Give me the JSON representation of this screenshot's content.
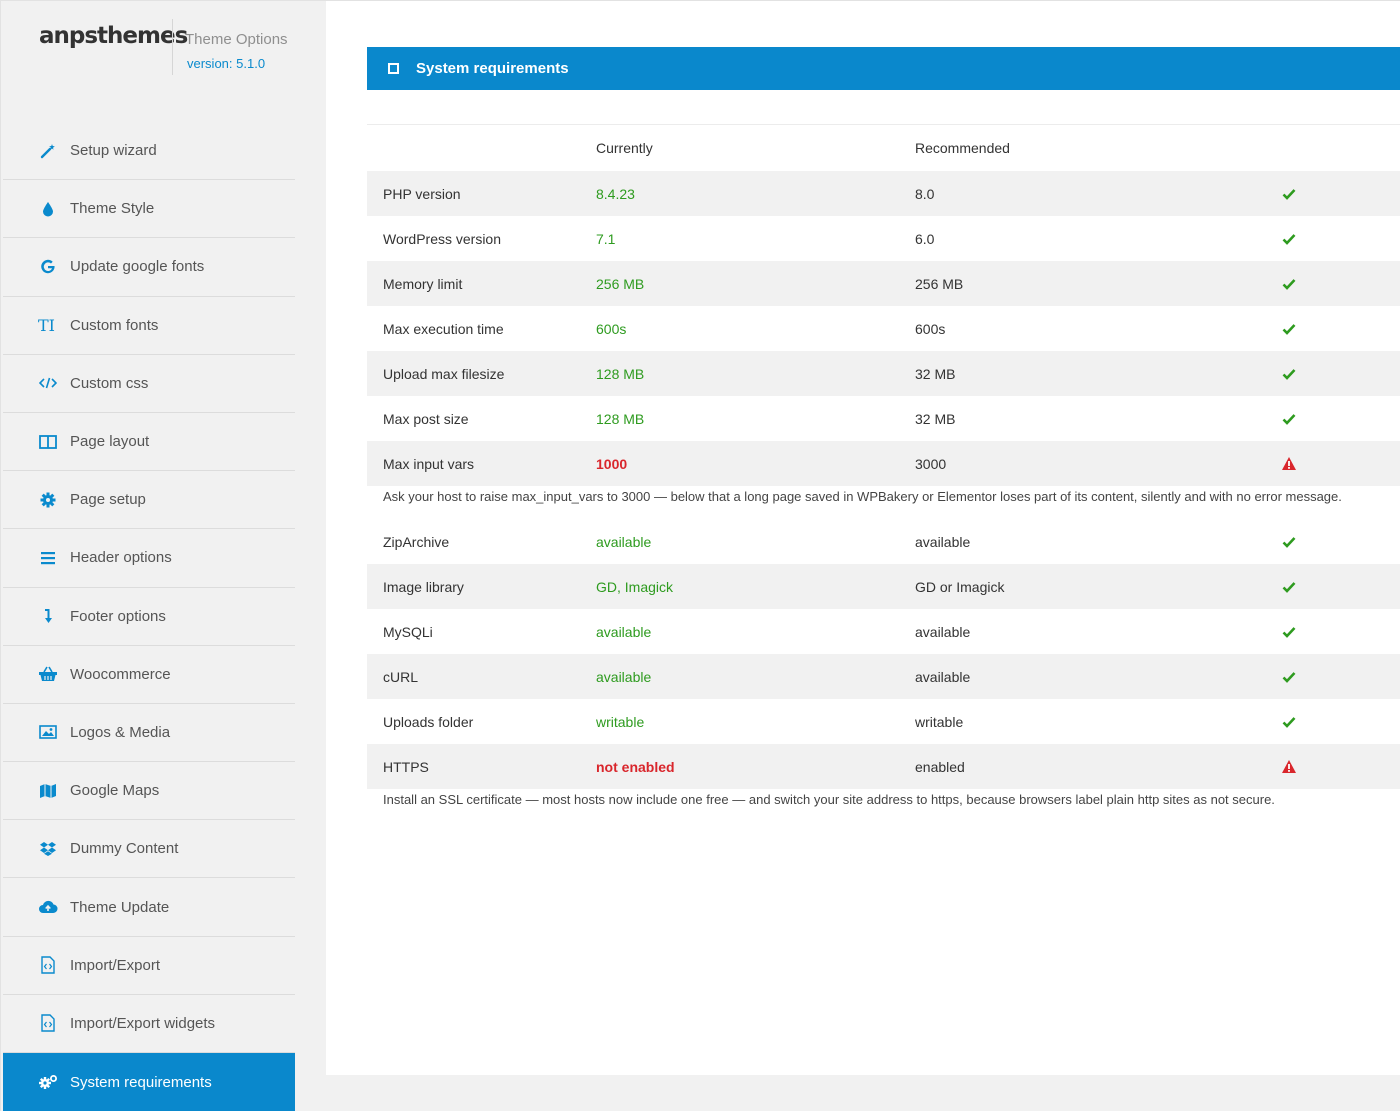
{
  "brand": {
    "logo": "anpsthemes",
    "title": "Theme Options",
    "version": "version: 5.1.0"
  },
  "menu": [
    {
      "label": "Setup wizard",
      "icon": "magic-wand-icon"
    },
    {
      "label": "Theme Style",
      "icon": "droplet-icon"
    },
    {
      "label": "Update google fonts",
      "icon": "google-icon"
    },
    {
      "label": "Custom fonts",
      "icon": "text-type-icon"
    },
    {
      "label": "Custom css",
      "icon": "code-icon"
    },
    {
      "label": "Page layout",
      "icon": "columns-icon"
    },
    {
      "label": "Page setup",
      "icon": "gear-icon"
    },
    {
      "label": "Header options",
      "icon": "menu-bars-icon"
    },
    {
      "label": "Footer options",
      "icon": "arrow-down-icon"
    },
    {
      "label": "Woocommerce",
      "icon": "basket-icon"
    },
    {
      "label": "Logos & Media",
      "icon": "image-icon"
    },
    {
      "label": "Google Maps",
      "icon": "map-icon"
    },
    {
      "label": "Dummy Content",
      "icon": "dropbox-icon"
    },
    {
      "label": "Theme Update",
      "icon": "cloud-upload-icon"
    },
    {
      "label": "Import/Export",
      "icon": "code-file-icon"
    },
    {
      "label": "Import/Export widgets",
      "icon": "code-file-icon"
    },
    {
      "label": "System requirements",
      "icon": "gears-icon",
      "active": true
    }
  ],
  "panel": {
    "title": "System requirements",
    "columns": {
      "currently": "Currently",
      "recommended": "Recommended"
    }
  },
  "requirements": [
    {
      "name": "PHP version",
      "current": "8.4.23",
      "recommended": "8.0",
      "status": "ok"
    },
    {
      "name": "WordPress version",
      "current": "7.1",
      "recommended": "6.0",
      "status": "ok"
    },
    {
      "name": "Memory limit",
      "current": "256 MB",
      "recommended": "256 MB",
      "status": "ok"
    },
    {
      "name": "Max execution time",
      "current": "600s",
      "recommended": "600s",
      "status": "ok"
    },
    {
      "name": "Upload max filesize",
      "current": "128 MB",
      "recommended": "32 MB",
      "status": "ok"
    },
    {
      "name": "Max post size",
      "current": "128 MB",
      "recommended": "32 MB",
      "status": "ok"
    },
    {
      "name": "Max input vars",
      "current": "1000",
      "recommended": "3000",
      "status": "warning",
      "note": "Ask your host to raise max_input_vars to 3000 — below that a long page saved in WPBakery or Elementor loses part of its content, silently and with no error message."
    },
    {
      "name": "ZipArchive",
      "current": "available",
      "recommended": "available",
      "status": "ok"
    },
    {
      "name": "Image library",
      "current": "GD, Imagick",
      "recommended": "GD or Imagick",
      "status": "ok"
    },
    {
      "name": "MySQLi",
      "current": "available",
      "recommended": "available",
      "status": "ok"
    },
    {
      "name": "cURL",
      "current": "available",
      "recommended": "available",
      "status": "ok"
    },
    {
      "name": "Uploads folder",
      "current": "writable",
      "recommended": "writable",
      "status": "ok"
    },
    {
      "name": "HTTPS",
      "current": "not enabled",
      "recommended": "enabled",
      "status": "warning",
      "note": "Install an SSL certificate — most hosts now include one free — and switch your site address to https, because browsers label plain http sites as not secure."
    }
  ],
  "colors": {
    "accent": "#0a88cc",
    "ok": "#2e9b1f",
    "warning": "#d9262c"
  }
}
